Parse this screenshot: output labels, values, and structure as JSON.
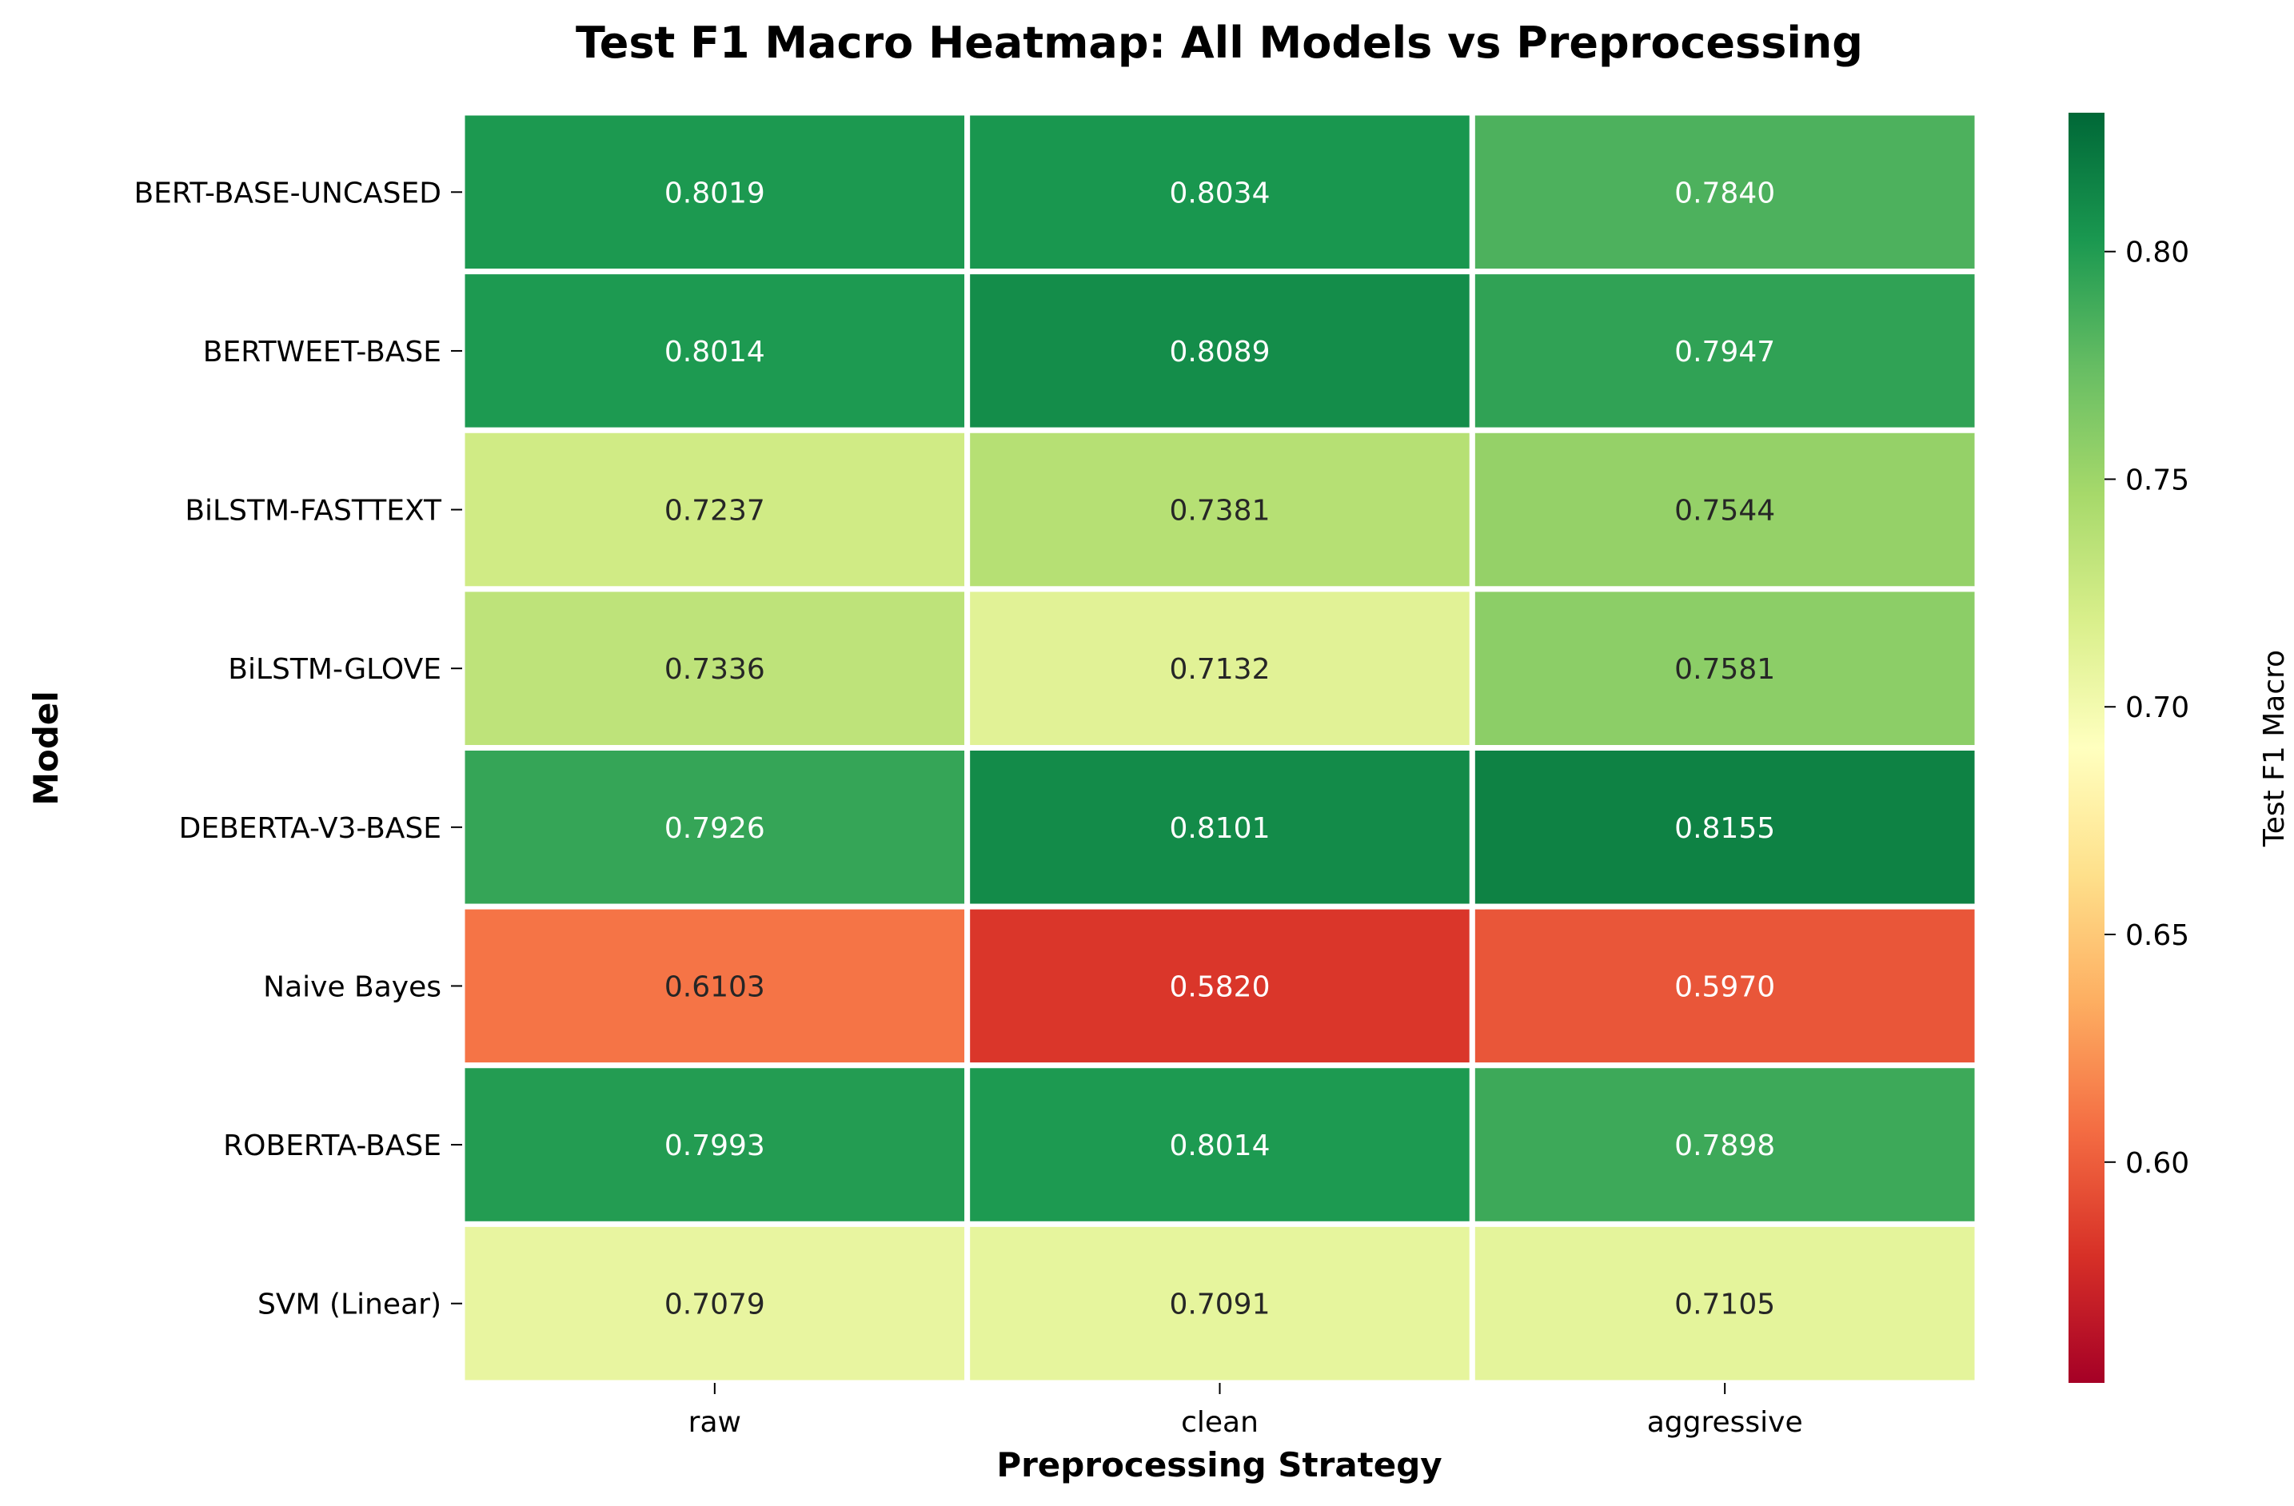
{
  "chart_data": {
    "type": "heatmap",
    "title": "Test F1 Macro Heatmap: All Models vs Preprocessing",
    "xlabel": "Preprocessing Strategy",
    "ylabel": "Model",
    "x_categories": [
      "raw",
      "clean",
      "aggressive"
    ],
    "y_categories": [
      "BERT-BASE-UNCASED",
      "BERTWEET-BASE",
      "BiLSTM-FASTTEXT",
      "BiLSTM-GLOVE",
      "DEBERTA-V3-BASE",
      "Naive Bayes",
      "ROBERTA-BASE",
      "SVM (Linear)"
    ],
    "values": [
      [
        0.8019,
        0.8034,
        0.784
      ],
      [
        0.8014,
        0.8089,
        0.7947
      ],
      [
        0.7237,
        0.7381,
        0.7544
      ],
      [
        0.7336,
        0.7132,
        0.7581
      ],
      [
        0.7926,
        0.8101,
        0.8155
      ],
      [
        0.6103,
        0.582,
        0.597
      ],
      [
        0.7993,
        0.8014,
        0.7898
      ],
      [
        0.7079,
        0.7091,
        0.7105
      ]
    ],
    "value_format": "4 decimals",
    "colormap": "RdYlGn",
    "colorbar": {
      "label": "Test F1 Macro",
      "range": [
        0.5515,
        0.8305
      ],
      "ticks": [
        "0.60",
        "0.65",
        "0.70",
        "0.75",
        "0.80"
      ]
    },
    "grid": false,
    "cell_separator_color": "#ffffff"
  }
}
